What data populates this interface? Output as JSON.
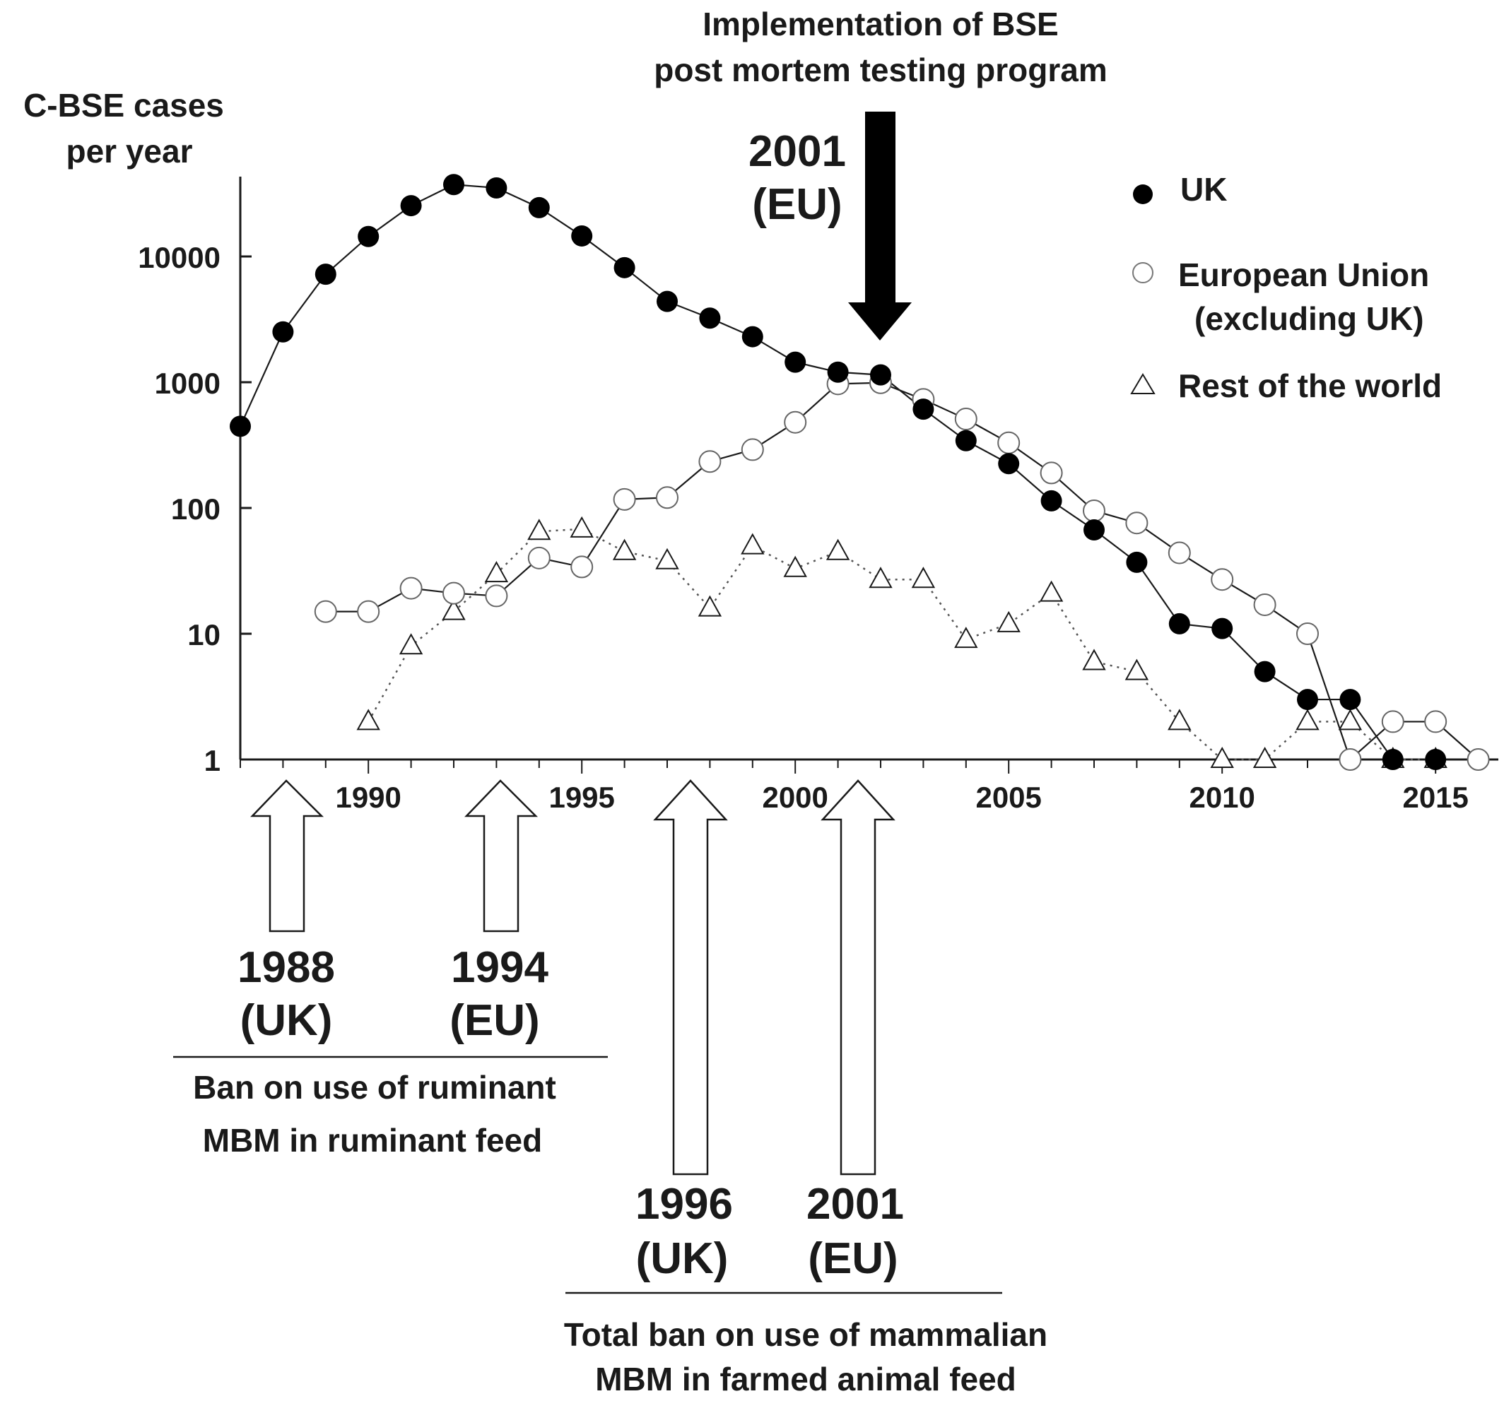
{
  "chart_data": {
    "type": "scatter",
    "ylabel": [
      "C-BSE cases",
      "per year"
    ],
    "xlabel": "",
    "y_scale": "log",
    "ylim": [
      1,
      40000
    ],
    "xlim": [
      1987,
      2016
    ],
    "y_ticks": [
      1,
      10,
      100,
      1000,
      10000
    ],
    "y_tick_labels": [
      "1",
      "10",
      "100",
      "1000",
      "10000"
    ],
    "x_ticks": [
      1990,
      1995,
      2000,
      2005,
      2010,
      2015
    ],
    "x_tick_labels": [
      "1990",
      "1995",
      "2000",
      "2005",
      "2010",
      "2015"
    ],
    "grid": false,
    "legend_position": "top-right",
    "series": [
      {
        "name": "UK",
        "marker": "filled-circle",
        "line": "solid",
        "x": [
          1987,
          1988,
          1989,
          1990,
          1991,
          1992,
          1993,
          1994,
          1995,
          1996,
          1997,
          1998,
          1999,
          2000,
          2001,
          2002,
          2003,
          2004,
          2005,
          2006,
          2007,
          2008,
          2009,
          2010,
          2011,
          2012,
          2013,
          2014,
          2015
        ],
        "values": [
          446,
          2514,
          7228,
          14407,
          25359,
          37280,
          35090,
          24438,
          14562,
          8149,
          4393,
          3235,
          2301,
          1443,
          1202,
          1144,
          611,
          343,
          225,
          114,
          67,
          37,
          12,
          11,
          5,
          3,
          3,
          1,
          1
        ]
      },
      {
        "name": [
          "European Union",
          "(excluding UK)"
        ],
        "marker": "open-circle",
        "line": "solid",
        "x": [
          1989,
          1990,
          1991,
          1992,
          1993,
          1994,
          1995,
          1996,
          1997,
          1998,
          1999,
          2000,
          2001,
          2002,
          2003,
          2004,
          2005,
          2006,
          2007,
          2008,
          2009,
          2010,
          2011,
          2012,
          2013,
          2014,
          2015,
          2016
        ],
        "values": [
          15,
          15,
          23,
          21,
          20,
          40,
          34,
          117,
          121,
          234,
          291,
          480,
          970,
          990,
          730,
          510,
          330,
          190,
          95,
          76,
          44,
          27,
          17,
          10,
          1,
          2,
          2,
          1
        ]
      },
      {
        "name": "Rest of the world",
        "marker": "open-triangle",
        "line": "dotted",
        "x": [
          1990,
          1991,
          1992,
          1993,
          1994,
          1995,
          1996,
          1997,
          1998,
          1999,
          2000,
          2001,
          2002,
          2003,
          2004,
          2005,
          2006,
          2007,
          2008,
          2009,
          2010,
          2011,
          2012,
          2013,
          2014,
          2015
        ],
        "values": [
          2,
          8,
          15,
          30,
          65,
          68,
          45,
          38,
          16,
          50,
          33,
          45,
          27,
          27,
          9,
          12,
          21,
          6,
          5,
          2,
          1,
          1,
          2,
          2,
          1,
          1
        ]
      }
    ],
    "annotations": {
      "top": {
        "text": [
          "Implementation of  BSE",
          "post mortem testing program"
        ],
        "year_label": [
          "2001",
          "(EU)"
        ],
        "x": 2002
      },
      "ruminant_ban": {
        "arrows": [
          {
            "year": "1988",
            "region": "(UK)",
            "x": 1988
          },
          {
            "year": "1994",
            "region": "(EU)",
            "x": 1993
          }
        ],
        "caption": [
          "Ban on use of ruminant",
          "MBM in ruminant feed"
        ]
      },
      "total_ban": {
        "arrows": [
          {
            "year": "1996",
            "region": "(UK)",
            "x": 1997
          },
          {
            "year": "2001",
            "region": "(EU)",
            "x": 2001
          }
        ],
        "caption": [
          "Total ban on use of mammalian",
          "MBM in farmed animal feed"
        ]
      }
    }
  },
  "colors": {
    "ink": "#1a1a1a",
    "filled_marker": "#000000",
    "open_marker_fill": "#ffffff",
    "dotted_line": "#555555"
  }
}
